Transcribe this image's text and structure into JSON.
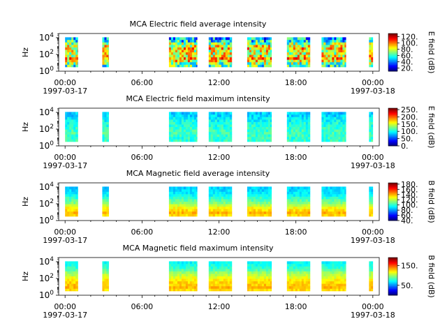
{
  "colors": {
    "jet": [
      "#00007f",
      "#0000ff",
      "#007fff",
      "#00ffff",
      "#7fff7f",
      "#ffff00",
      "#ff7f00",
      "#ff0000",
      "#7f0000"
    ]
  },
  "time_axis": {
    "tick_labels": [
      "00:00",
      "06:00",
      "12:00",
      "18:00",
      "00:00"
    ],
    "tick_hours": [
      0,
      6,
      12,
      18,
      24
    ],
    "minor_hours": [
      0,
      1,
      2,
      3,
      4,
      5,
      6,
      7,
      8,
      9,
      10,
      11,
      12,
      13,
      14,
      15,
      16,
      17,
      18,
      19,
      20,
      21,
      22,
      23,
      24
    ],
    "start_date": "1997-03-17",
    "end_date": "1997-03-18",
    "xlim_hours": [
      -0.5,
      24.5
    ]
  },
  "data_segments_hours": [
    [
      0.0,
      1.0
    ],
    [
      2.9,
      3.4
    ],
    [
      8.1,
      10.3
    ],
    [
      11.2,
      13.0
    ],
    [
      14.2,
      16.1
    ],
    [
      17.3,
      19.1
    ],
    [
      20.0,
      21.9
    ],
    [
      23.7,
      24.0
    ]
  ],
  "chart_data": [
    {
      "type": "heatmap",
      "title": "MCA  Electric field average intensity",
      "ylabel": "Hz",
      "yscale": "log",
      "ylim_log10": [
        0,
        4.5
      ],
      "ytick_labels": [
        {
          "base": "10",
          "exp": "0"
        },
        {
          "base": "10",
          "exp": "2"
        },
        {
          "base": "10",
          "exp": "4"
        }
      ],
      "ytick_log10": [
        0,
        2,
        4
      ],
      "colorbar": {
        "label": "E field (dB)",
        "range": [
          10,
          130
        ],
        "ticks": [
          20,
          40,
          60,
          80,
          100,
          120
        ],
        "tick_labels": [
          "20.",
          "40.",
          "60.",
          "80.",
          "100.",
          "120."
        ]
      },
      "freq_profile": [
        0.42,
        0.5,
        0.62,
        0.72,
        0.62,
        0.58,
        0.6,
        0.66,
        0.6,
        0.5,
        0.38,
        0.3
      ],
      "variability": 0.22
    },
    {
      "type": "heatmap",
      "title": "MCA  Electric field maximum intensity",
      "ylabel": "Hz",
      "yscale": "log",
      "ylim_log10": [
        0,
        4.5
      ],
      "ytick_labels": [
        {
          "base": "10",
          "exp": "0"
        },
        {
          "base": "10",
          "exp": "2"
        },
        {
          "base": "10",
          "exp": "4"
        }
      ],
      "ytick_log10": [
        0,
        2,
        4
      ],
      "colorbar": {
        "label": "E field (dB)",
        "range": [
          0,
          260
        ],
        "ticks": [
          0,
          50,
          100,
          150,
          200,
          250
        ],
        "tick_labels": [
          "0.",
          "50.",
          "100.",
          "150.",
          "200.",
          "250."
        ]
      },
      "freq_profile": [
        0.42,
        0.42,
        0.43,
        0.44,
        0.43,
        0.42,
        0.41,
        0.4,
        0.38,
        0.36,
        0.34,
        0.33
      ],
      "variability": 0.06
    },
    {
      "type": "heatmap",
      "title": "MCA  Magnetic field average intensity",
      "ylabel": "Hz",
      "yscale": "log",
      "ylim_log10": [
        0,
        4.5
      ],
      "ytick_labels": [
        {
          "base": "10",
          "exp": "0"
        },
        {
          "base": "10",
          "exp": "2"
        },
        {
          "base": "10",
          "exp": "4"
        }
      ],
      "ytick_log10": [
        0,
        2,
        4
      ],
      "colorbar": {
        "label": "B field (dB)",
        "range": [
          40,
          185
        ],
        "ticks": [
          40,
          60,
          80,
          100,
          120,
          140,
          160,
          180
        ],
        "tick_labels": [
          "40.",
          "60.",
          "80.",
          "100.",
          "120.",
          "140.",
          "160.",
          "180."
        ]
      },
      "freq_profile": [
        0.66,
        0.7,
        0.66,
        0.62,
        0.56,
        0.5,
        0.46,
        0.42,
        0.38,
        0.36,
        0.34,
        0.33
      ],
      "variability": 0.04
    },
    {
      "type": "heatmap",
      "title": "MCA  Magnetic field maximum intensity",
      "ylabel": "Hz",
      "yscale": "log",
      "ylim_log10": [
        0,
        4.5
      ],
      "ytick_labels": [
        {
          "base": "10",
          "exp": "0"
        },
        {
          "base": "10",
          "exp": "2"
        },
        {
          "base": "10",
          "exp": "4"
        }
      ],
      "ytick_log10": [
        0,
        2,
        4
      ],
      "colorbar": {
        "label": "B field (dB)",
        "range": [
          0,
          190
        ],
        "ticks": [
          50,
          150
        ],
        "tick_labels": [
          "50.",
          "150."
        ]
      },
      "freq_profile": [
        0.66,
        0.7,
        0.68,
        0.66,
        0.64,
        0.6,
        0.56,
        0.52,
        0.46,
        0.42,
        0.4,
        0.38
      ],
      "variability": 0.04
    }
  ]
}
